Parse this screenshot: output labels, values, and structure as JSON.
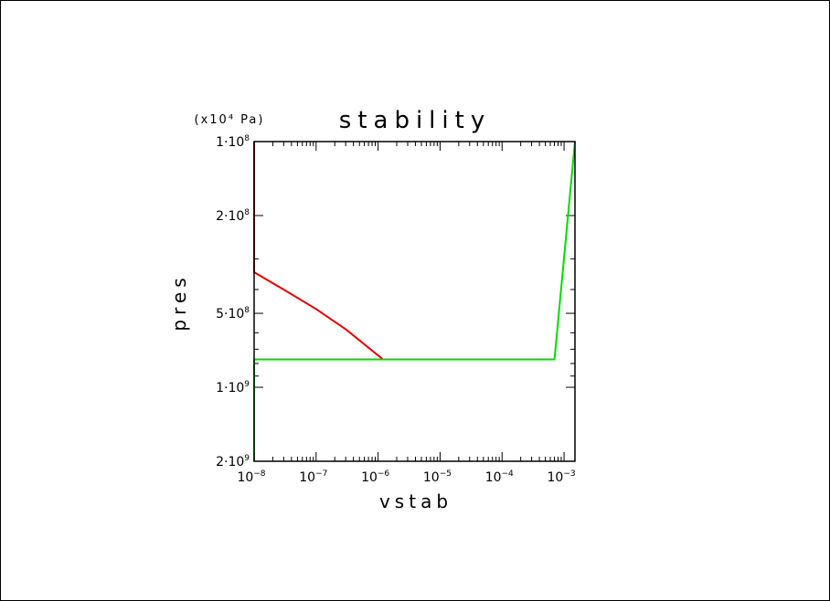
{
  "colors": {
    "background": "#ffffff",
    "axes": "#000000"
  },
  "chart_data": {
    "type": "line",
    "title": "stability",
    "xlabel": "vstab",
    "ylabel": "pres",
    "y_units": "(x10⁴ Pa)",
    "x_scale": "log",
    "y_scale": "log",
    "y_inverted": true,
    "xlim": [
      1e-08,
      0.0015
    ],
    "ylim": [
      100000000.0,
      2000000000.0
    ],
    "x_ticks": [
      {
        "value": 1e-08,
        "mant": "10",
        "exp": "−8"
      },
      {
        "value": 1e-07,
        "mant": "10",
        "exp": "−7"
      },
      {
        "value": 1e-06,
        "mant": "10",
        "exp": "−6"
      },
      {
        "value": 1e-05,
        "mant": "10",
        "exp": "−5"
      },
      {
        "value": 0.0001,
        "mant": "10",
        "exp": "−4"
      },
      {
        "value": 0.001,
        "mant": "10",
        "exp": "−3"
      }
    ],
    "y_ticks": [
      {
        "value": 100000000.0,
        "mant": "1·10",
        "exp": "8"
      },
      {
        "value": 200000000.0,
        "mant": "2·10",
        "exp": "8"
      },
      {
        "value": 500000000.0,
        "mant": "5·10",
        "exp": "8"
      },
      {
        "value": 1000000000.0,
        "mant": "1·10",
        "exp": "9"
      },
      {
        "value": 2000000000.0,
        "mant": "2·10",
        "exp": "9"
      }
    ],
    "series": [
      {
        "color": "#dd0000",
        "x": [
          1e-08,
          1e-08,
          3e-08,
          1e-07,
          3e-07,
          1.2e-06
        ],
        "y": [
          100000000.0,
          340000000.0,
          400000000.0,
          480000000.0,
          580000000.0,
          770000000.0
        ]
      },
      {
        "color": "#00dd00",
        "x": [
          1e-08,
          1e-08,
          1.2e-06,
          0.0007,
          0.0015
        ],
        "y": [
          2000000000.0,
          770000000.0,
          770000000.0,
          770000000.0,
          100000000.0
        ]
      }
    ]
  }
}
